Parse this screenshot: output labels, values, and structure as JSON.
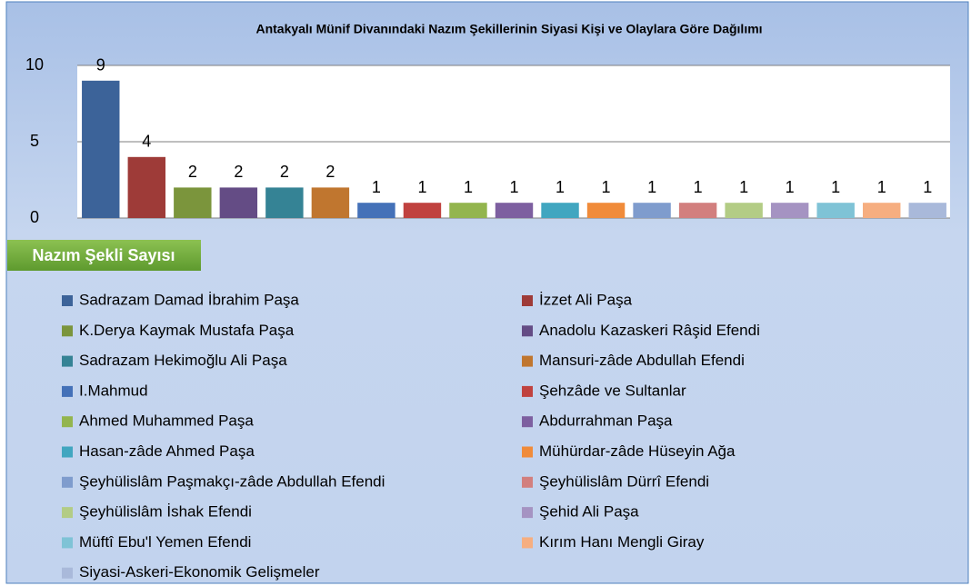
{
  "chart_data": {
    "type": "bar",
    "title": "Antakyalı Münif Divanındaki Nazım Şekillerinin  Siyasi Kişi ve Olaylara Göre Dağılımı",
    "y_label": "Nazım Şekli Sayısı",
    "categories": [
      null
    ],
    "ylim": [
      0,
      10
    ],
    "yticks": [
      0,
      5,
      10
    ],
    "grid": true,
    "series": [
      {
        "name": "Sadrazam Damad İbrahim Paşa",
        "color": "#3c6399",
        "values": [
          9
        ]
      },
      {
        "name": "İzzet Ali  Paşa",
        "color": "#9e3b38",
        "values": [
          4
        ]
      },
      {
        "name": "K.Derya Kaymak Mustafa Paşa",
        "color": "#7b953c",
        "values": [
          2
        ]
      },
      {
        "name": "Anadolu Kazaskeri Râşid Efendi",
        "color": "#644c85",
        "values": [
          2
        ]
      },
      {
        "name": "Sadrazam Hekimoğlu Ali Paşa",
        "color": "#358395",
        "values": [
          2
        ]
      },
      {
        "name": "Mansuri-zâde Abdullah Efendi",
        "color": "#c0762f",
        "values": [
          2
        ]
      },
      {
        "name": "I.Mahmud",
        "color": "#4471b8",
        "values": [
          1
        ]
      },
      {
        "name": "Şehzâde ve Sultanlar",
        "color": "#c0423f",
        "values": [
          1
        ]
      },
      {
        "name": "Ahmed Muhammed Paşa",
        "color": "#93b54e",
        "values": [
          1
        ]
      },
      {
        "name": "Abdurrahman Paşa",
        "color": "#7d5fa0",
        "values": [
          1
        ]
      },
      {
        "name": "Hasan-zâde Ahmed Paşa",
        "color": "#41a6c0",
        "values": [
          1
        ]
      },
      {
        "name": "Mühürdar-zâde Hüseyin Ağa",
        "color": "#f08b3a",
        "values": [
          1
        ]
      },
      {
        "name": "Şeyhülislâm Paşmakçı-zâde Abdullah Efendi",
        "color": "#7f9ccd",
        "values": [
          1
        ]
      },
      {
        "name": "Şeyhülislâm Dürrî Efendi",
        "color": "#d27f7e",
        "values": [
          1
        ]
      },
      {
        "name": "Şeyhülislâm İshak Efendi",
        "color": "#b3cc85",
        "values": [
          1
        ]
      },
      {
        "name": "Şehid Ali Paşa",
        "color": "#a593c2",
        "values": [
          1
        ]
      },
      {
        "name": "Müftî Ebu'l Yemen Efendi",
        "color": "#7fc3d6",
        "values": [
          1
        ]
      },
      {
        "name": "Kırım Hanı Mengli Giray",
        "color": "#f6ae80",
        "values": [
          1
        ]
      },
      {
        "name": "Siyasi-Askeri-Ekonomik Gelişmeler",
        "color": "#a9b9da",
        "values": [
          1
        ]
      }
    ]
  }
}
